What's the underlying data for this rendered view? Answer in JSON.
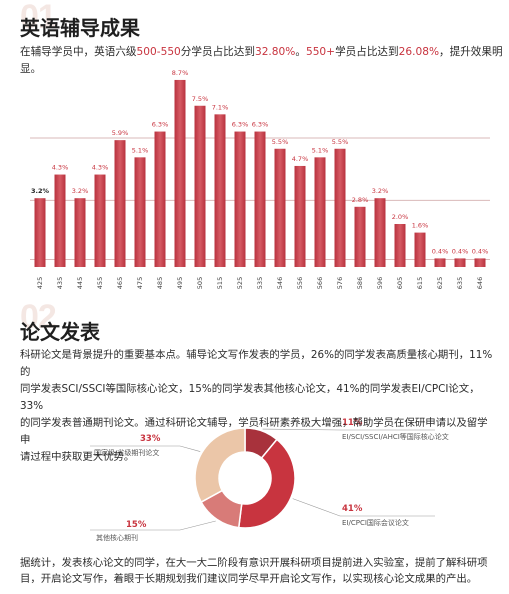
{
  "section1": {
    "number": "01",
    "title": "英语辅导成果",
    "summary": {
      "p1": "在辅导学员中，英语六级",
      "h1": "500-550",
      "p2": "分学员占比达到",
      "h2": "32.80%",
      "p3": "。",
      "h3": "550+",
      "p4": "学员占比达到",
      "h4": "26.08%",
      "p5": "，提升效果明显。"
    }
  },
  "chart_data": {
    "type": "bar",
    "categories": [
      "425",
      "435",
      "445",
      "455",
      "465",
      "475",
      "485",
      "495",
      "505",
      "515",
      "525",
      "535",
      "546",
      "556",
      "566",
      "576",
      "586",
      "596",
      "605",
      "615",
      "625",
      "635",
      "646"
    ],
    "values": [
      3.2,
      4.3,
      3.2,
      4.3,
      5.9,
      5.1,
      6.3,
      8.7,
      7.5,
      7.1,
      6.3,
      6.3,
      5.5,
      4.7,
      5.1,
      5.5,
      2.8,
      3.2,
      2.0,
      1.6,
      0.4,
      0.4,
      0.4
    ],
    "labels": [
      "3.2%",
      "4.3%",
      "3.2%",
      "4.3%",
      "5.9%",
      "5.1%",
      "6.3%",
      "8.7%",
      "7.5%",
      "7.1%",
      "6.3%",
      "6.3%",
      "5.5%",
      "4.7%",
      "5.1%",
      "5.5%",
      "2.8%",
      "3.2%",
      "2.0%",
      "1.6%",
      "0.4%",
      "0.4%",
      "0.4%"
    ],
    "colors": {
      "bar": "#b8323e",
      "bar_light": "#d65a63",
      "grid": "#d9b9b9"
    }
  },
  "section2": {
    "number": "02",
    "title": "论文发表",
    "intro": [
      "科研论文是背景提升的重要基本点。辅导论文写作发表的学员，26%的同学发表高质量核心期刊，11%的",
      "同学发表SCI/SSCI等国际核心论文，15%的同学发表其他核心论文，41%的同学发表EI/CPCI论文，33%",
      "的同学发表普通期刊论文。通过科研论文辅导，学员科研素养极大增强，帮助学员在保研申请以及留学申",
      "请过程中获取更大优势。"
    ],
    "donut": [
      {
        "pct": "11%",
        "label": "EI/SCI/SSCI/AHCI等国际核心论文",
        "value": 11,
        "color": "#a8323c"
      },
      {
        "pct": "41%",
        "label": "EI/CPCI国际会议论文",
        "value": 41,
        "color": "#c8343f"
      },
      {
        "pct": "15%",
        "label": "其他核心期刊",
        "value": 15,
        "color": "#d87b78"
      },
      {
        "pct": "33%",
        "label": "国家级/省级期刊论文",
        "value": 33,
        "color": "#ebc6a8"
      }
    ],
    "footer": [
      "据统计，发表核心论文的同学，在大一大二阶段有意识开展科研项目提前进入实验室，提前了解科研项",
      "目，开启论文写作，着眼于长期规划我们建议同学尽早开启论文写作，以实现核心论文成果的产出。"
    ]
  }
}
